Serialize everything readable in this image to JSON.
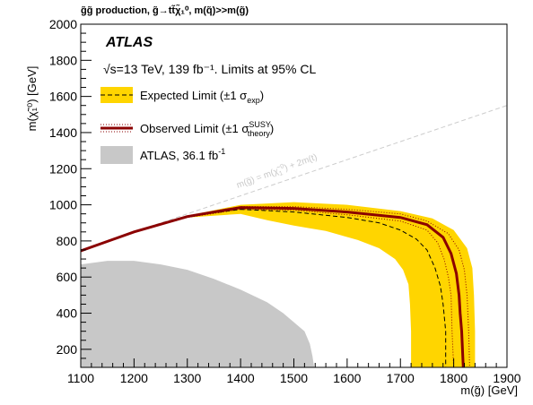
{
  "chart_data": {
    "type": "line",
    "title": "g̃g̃ production, g̃→tt̃χ̃₁⁰, m(q̃)>>m(g̃)",
    "xlabel": "m(g̃) [GeV]",
    "ylabel": "m(χ̃₁⁰) [GeV]",
    "xlim": [
      1100,
      1900
    ],
    "ylim": [
      100,
      2000
    ],
    "x_ticks": [
      "1100",
      "1200",
      "1300",
      "1400",
      "1500",
      "1600",
      "1700",
      "1800",
      "1900"
    ],
    "y_ticks": [
      "200",
      "400",
      "600",
      "800",
      "1000",
      "1200",
      "1400",
      "1600",
      "1800",
      "2000"
    ],
    "experiment": "ATLAS",
    "info_line": "√s=13 TeV, 139 fb⁻¹. Limits at 95% CL",
    "diagonal_label": "m(g̃) = m(χ̃₁⁰) + 2m(t)",
    "legend": {
      "expected": "Expected Limit (±1 σexp)",
      "observed": "Observed Limit (±1 σtheory SUSY)",
      "previous": "ATLAS, 36.1 fb⁻¹"
    },
    "colors": {
      "band": "#ffd500",
      "observed": "#8b0000",
      "previous": "#c8c8c8",
      "diagonal": "#cccccc"
    },
    "series": [
      {
        "name": "Expected Limit (±1 σexp)",
        "style": "dashed",
        "points": [
          [
            1100,
            745
          ],
          [
            1200,
            850
          ],
          [
            1300,
            935
          ],
          [
            1400,
            975
          ],
          [
            1500,
            960
          ],
          [
            1600,
            930
          ],
          [
            1660,
            900
          ],
          [
            1700,
            860
          ],
          [
            1730,
            810
          ],
          [
            1750,
            750
          ],
          [
            1765,
            650
          ],
          [
            1775,
            550
          ],
          [
            1780,
            450
          ],
          [
            1785,
            300
          ],
          [
            1785,
            100
          ]
        ]
      },
      {
        "name": "Observed Limit (±1 σtheory SUSY)",
        "style": "solid",
        "points": [
          [
            1100,
            745
          ],
          [
            1200,
            850
          ],
          [
            1300,
            935
          ],
          [
            1400,
            985
          ],
          [
            1500,
            980
          ],
          [
            1600,
            960
          ],
          [
            1700,
            930
          ],
          [
            1750,
            890
          ],
          [
            1780,
            820
          ],
          [
            1795,
            730
          ],
          [
            1805,
            620
          ],
          [
            1810,
            500
          ],
          [
            1812,
            400
          ],
          [
            1815,
            300
          ],
          [
            1818,
            100
          ]
        ]
      },
      {
        "name": "Expected upper band",
        "style": "band_edge",
        "points": [
          [
            1100,
            745
          ],
          [
            1200,
            850
          ],
          [
            1300,
            940
          ],
          [
            1400,
            1000
          ],
          [
            1500,
            1015
          ],
          [
            1600,
            1000
          ],
          [
            1700,
            965
          ],
          [
            1760,
            925
          ],
          [
            1800,
            860
          ],
          [
            1825,
            760
          ],
          [
            1835,
            650
          ],
          [
            1838,
            500
          ],
          [
            1840,
            300
          ],
          [
            1840,
            100
          ]
        ]
      },
      {
        "name": "Expected lower band",
        "style": "band_edge",
        "points": [
          [
            1100,
            745
          ],
          [
            1200,
            850
          ],
          [
            1300,
            930
          ],
          [
            1400,
            950
          ],
          [
            1450,
            915
          ],
          [
            1500,
            885
          ],
          [
            1560,
            855
          ],
          [
            1620,
            805
          ],
          [
            1660,
            760
          ],
          [
            1690,
            700
          ],
          [
            1705,
            640
          ],
          [
            1715,
            560
          ],
          [
            1718,
            450
          ],
          [
            1720,
            300
          ],
          [
            1720,
            100
          ]
        ]
      },
      {
        "name": "Observed +1σ theory",
        "style": "dotted",
        "points": [
          [
            1100,
            745
          ],
          [
            1200,
            850
          ],
          [
            1300,
            940
          ],
          [
            1400,
            990
          ],
          [
            1500,
            990
          ],
          [
            1600,
            975
          ],
          [
            1700,
            950
          ],
          [
            1750,
            910
          ],
          [
            1790,
            840
          ],
          [
            1810,
            750
          ],
          [
            1820,
            640
          ],
          [
            1825,
            500
          ],
          [
            1828,
            300
          ],
          [
            1830,
            100
          ]
        ]
      },
      {
        "name": "Observed -1σ theory",
        "style": "dotted",
        "points": [
          [
            1100,
            745
          ],
          [
            1200,
            850
          ],
          [
            1300,
            930
          ],
          [
            1400,
            975
          ],
          [
            1500,
            970
          ],
          [
            1600,
            945
          ],
          [
            1700,
            910
          ],
          [
            1750,
            860
          ],
          [
            1770,
            790
          ],
          [
            1782,
            700
          ],
          [
            1790,
            600
          ],
          [
            1795,
            500
          ],
          [
            1797,
            300
          ],
          [
            1800,
            100
          ]
        ]
      },
      {
        "name": "ATLAS, 36.1 fb⁻¹",
        "style": "filled",
        "points": [
          [
            1100,
            100
          ],
          [
            1100,
            670
          ],
          [
            1150,
            690
          ],
          [
            1200,
            690
          ],
          [
            1250,
            670
          ],
          [
            1300,
            640
          ],
          [
            1350,
            590
          ],
          [
            1400,
            530
          ],
          [
            1450,
            460
          ],
          [
            1480,
            400
          ],
          [
            1500,
            350
          ],
          [
            1520,
            300
          ],
          [
            1530,
            230
          ],
          [
            1535,
            160
          ],
          [
            1538,
            100
          ]
        ]
      }
    ]
  }
}
